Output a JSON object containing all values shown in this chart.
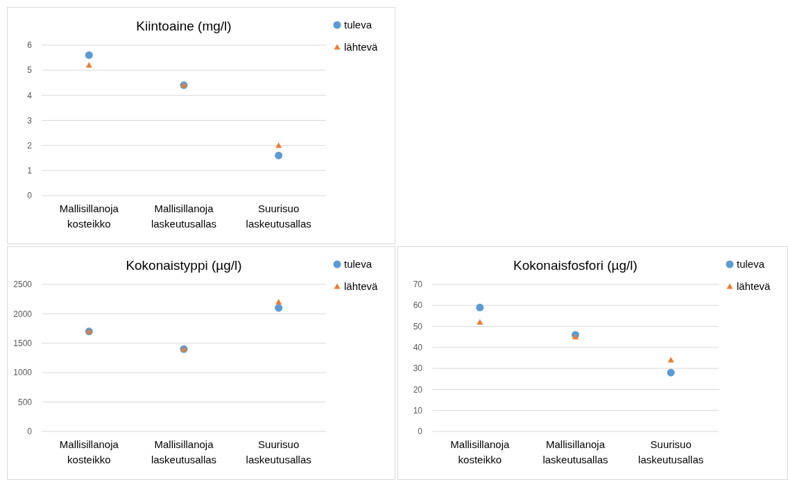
{
  "chart_data": [
    {
      "type": "scatter",
      "title": "Kiintoaine (mg/l)",
      "categories": [
        "Mallisillanoja kosteikko",
        "Mallisillanoja laskeutusallas",
        "Suurisuo laskeutusallas"
      ],
      "ylim": [
        0,
        6
      ],
      "yticks": [
        0,
        1,
        2,
        3,
        4,
        5,
        6
      ],
      "grid": "y",
      "legend": "top right",
      "series": [
        {
          "name": "tuleva",
          "color": "#5b9bd5",
          "marker": "circle",
          "values": [
            5.6,
            4.4,
            1.6
          ]
        },
        {
          "name": "lähtevä",
          "color": "#ed7d31",
          "marker": "triangle",
          "values": [
            5.2,
            4.4,
            2.0
          ]
        }
      ]
    },
    {
      "type": "scatter",
      "title": "Kokonaistyppi (µg/l)",
      "categories": [
        "Mallisillanoja kosteikko",
        "Mallisillanoja laskeutusallas",
        "Suurisuo laskeutusallas"
      ],
      "ylim": [
        0,
        2500
      ],
      "yticks": [
        0,
        500,
        1000,
        1500,
        2000,
        2500
      ],
      "grid": "y",
      "legend": "top right",
      "series": [
        {
          "name": "tuleva",
          "color": "#5b9bd5",
          "marker": "circle",
          "values": [
            1700,
            1400,
            2100
          ]
        },
        {
          "name": "lähtevä",
          "color": "#ed7d31",
          "marker": "triangle",
          "values": [
            1700,
            1400,
            2200
          ]
        }
      ]
    },
    {
      "type": "scatter",
      "title": "Kokonaisfosfori (µg/l)",
      "categories": [
        "Mallisillanoja kosteikko",
        "Mallisillanoja laskeutusallas",
        "Suurisuo laskeutusallas"
      ],
      "ylim": [
        0,
        70
      ],
      "yticks": [
        0,
        10,
        20,
        30,
        40,
        50,
        60,
        70
      ],
      "grid": "y",
      "legend": "top right",
      "series": [
        {
          "name": "tuleva",
          "color": "#5b9bd5",
          "marker": "circle",
          "values": [
            59,
            46,
            28
          ]
        },
        {
          "name": "lähtevä",
          "color": "#ed7d31",
          "marker": "triangle",
          "values": [
            52,
            45,
            34
          ]
        }
      ]
    }
  ]
}
